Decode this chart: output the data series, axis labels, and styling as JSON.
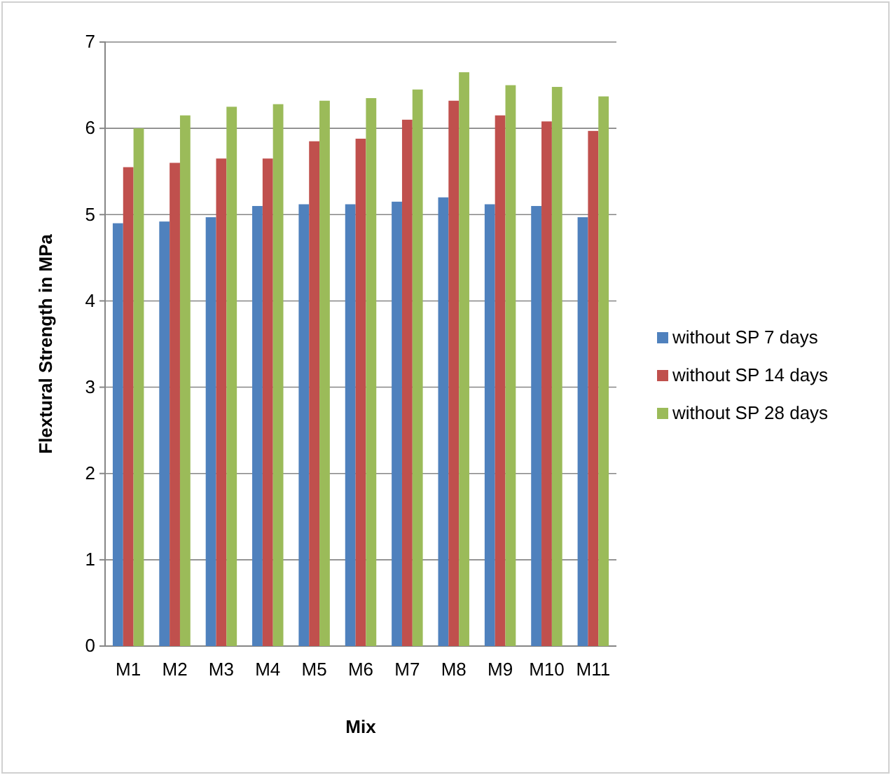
{
  "chart_data": {
    "type": "bar",
    "xlabel": "Mix",
    "ylabel": "Flextural Strength in MPa",
    "categories": [
      "M1",
      "M2",
      "M3",
      "M4",
      "M5",
      "M6",
      "M7",
      "M8",
      "M9",
      "M10",
      "M11"
    ],
    "series": [
      {
        "name": "without  SP 7 days",
        "color": "#4f81bd",
        "values": [
          4.9,
          4.92,
          4.97,
          5.1,
          5.12,
          5.12,
          5.15,
          5.2,
          5.12,
          5.1,
          4.97
        ]
      },
      {
        "name": "without  SP 14 days",
        "color": "#c0504d",
        "values": [
          5.55,
          5.6,
          5.65,
          5.65,
          5.85,
          5.88,
          6.1,
          6.32,
          6.15,
          6.08,
          5.97
        ]
      },
      {
        "name": "without  SP 28  days",
        "color": "#9bbb59",
        "values": [
          6.0,
          6.15,
          6.25,
          6.28,
          6.32,
          6.35,
          6.45,
          6.65,
          6.5,
          6.48,
          6.37
        ]
      }
    ],
    "ylim": [
      0,
      7
    ],
    "yticks": [
      0,
      1,
      2,
      3,
      4,
      5,
      6,
      7
    ],
    "grid": "y",
    "legend": "right"
  }
}
